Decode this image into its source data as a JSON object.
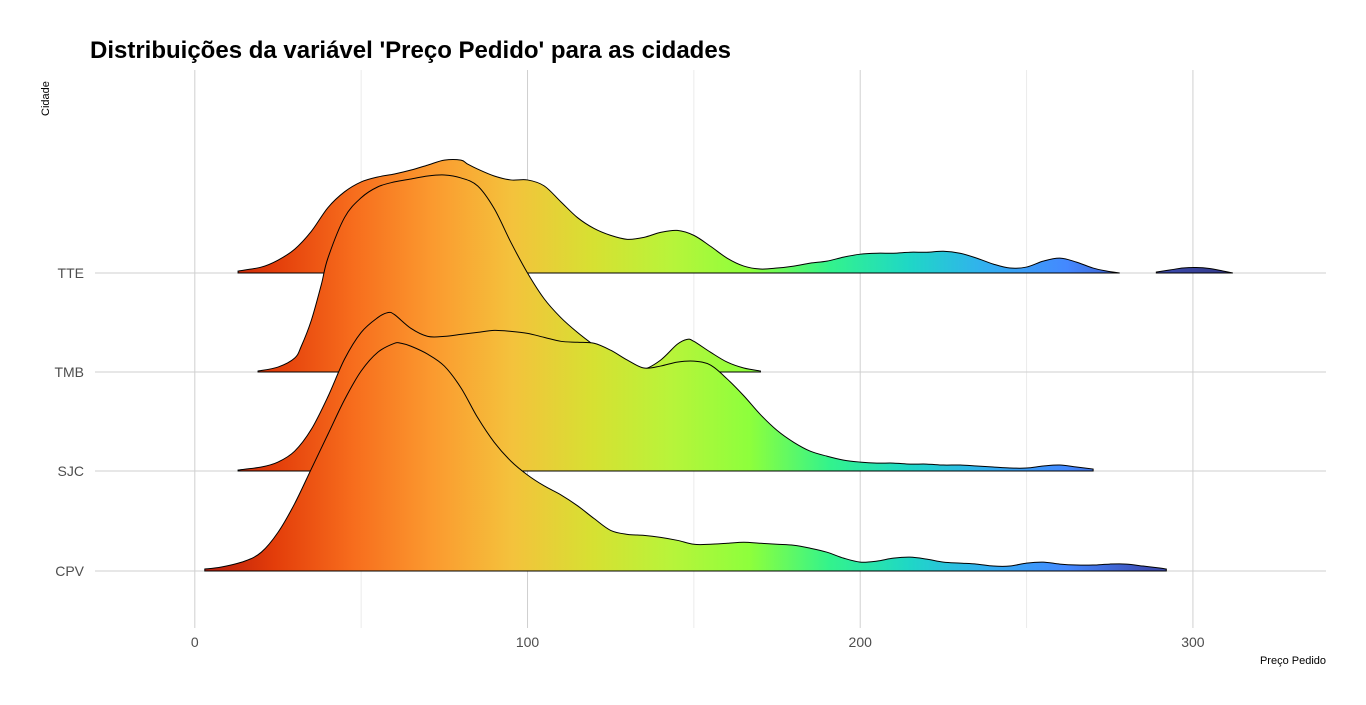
{
  "chart_data": {
    "type": "ridgeline",
    "title": "Distribuições da variável 'Preço Pedido' para as cidades",
    "xlabel": "Preço Pedido",
    "ylabel": "Cidade",
    "xlim": [
      -30,
      340
    ],
    "x_ticks": [
      0,
      100,
      200,
      300
    ],
    "x_minor_ticks": [
      50,
      150,
      250
    ],
    "fill_gradient": [
      "#b3170c",
      "#e33d0a",
      "#f76d1d",
      "#fb9a2f",
      "#f4c23c",
      "#d7e032",
      "#b8f43a",
      "#8dff3c",
      "#33f38c",
      "#1fd7c6",
      "#33aef1",
      "#4488ff",
      "#3d4eb6",
      "#343a8a"
    ],
    "grid": true,
    "legend": "none",
    "series": [
      {
        "name": "TTE",
        "segments": [
          {
            "x": [
              13,
              20,
              25,
              30,
              35,
              40,
              45,
              50,
              55,
              60,
              65,
              70,
              75,
              80,
              82,
              85,
              90,
              95,
              100,
              105,
              110,
              115,
              120,
              125,
              130,
              135,
              140,
              145,
              150,
              155,
              160,
              165,
              170,
              175,
              180,
              185,
              190,
              195,
              200,
              205,
              210,
              215,
              220,
              225,
              230,
              235,
              240,
              245,
              250,
              255,
              260,
              265,
              270,
              274,
              278
            ],
            "y": [
              0.02,
              0.06,
              0.13,
              0.24,
              0.42,
              0.66,
              0.82,
              0.92,
              0.97,
              1.0,
              1.04,
              1.09,
              1.14,
              1.14,
              1.1,
              1.05,
              0.98,
              0.94,
              0.94,
              0.88,
              0.72,
              0.56,
              0.45,
              0.38,
              0.34,
              0.36,
              0.41,
              0.43,
              0.38,
              0.27,
              0.15,
              0.07,
              0.04,
              0.05,
              0.07,
              0.1,
              0.12,
              0.16,
              0.19,
              0.2,
              0.2,
              0.21,
              0.21,
              0.22,
              0.2,
              0.15,
              0.09,
              0.05,
              0.06,
              0.12,
              0.15,
              0.11,
              0.05,
              0.02,
              0.0
            ]
          },
          {
            "x": [
              289,
              293,
              297,
              301,
              305,
              309,
              312
            ],
            "y": [
              0.01,
              0.03,
              0.05,
              0.055,
              0.045,
              0.02,
              0.0
            ]
          }
        ]
      },
      {
        "name": "TMB",
        "segments": [
          {
            "x": [
              19,
              25,
              30,
              32,
              35,
              38,
              40,
              45,
              50,
              55,
              60,
              65,
              70,
              75,
              80,
              85,
              90,
              95,
              100,
              105,
              110,
              115,
              120,
              125,
              130,
              135,
              140,
              145,
              148,
              150,
              155,
              160,
              165,
              170
            ],
            "y": [
              0.01,
              0.05,
              0.14,
              0.26,
              0.52,
              0.88,
              1.15,
              1.56,
              1.76,
              1.87,
              1.92,
              1.95,
              1.98,
              1.99,
              1.96,
              1.88,
              1.65,
              1.31,
              1.0,
              0.74,
              0.55,
              0.4,
              0.27,
              0.15,
              0.06,
              0.03,
              0.12,
              0.28,
              0.33,
              0.31,
              0.2,
              0.1,
              0.04,
              0.01
            ]
          }
        ]
      },
      {
        "name": "SJC",
        "segments": [
          {
            "x": [
              13,
              20,
              25,
              30,
              35,
              40,
              45,
              50,
              55,
              58,
              60,
              65,
              70,
              75,
              80,
              85,
              90,
              95,
              100,
              105,
              110,
              115,
              120,
              125,
              130,
              135,
              140,
              145,
              150,
              155,
              160,
              165,
              170,
              175,
              180,
              185,
              190,
              195,
              200,
              205,
              210,
              215,
              220,
              225,
              230,
              235,
              240,
              245,
              250,
              255,
              260,
              265,
              270
            ],
            "y": [
              0.01,
              0.04,
              0.09,
              0.2,
              0.42,
              0.75,
              1.13,
              1.4,
              1.55,
              1.6,
              1.58,
              1.44,
              1.36,
              1.36,
              1.38,
              1.4,
              1.42,
              1.41,
              1.39,
              1.35,
              1.31,
              1.3,
              1.29,
              1.22,
              1.12,
              1.04,
              1.06,
              1.1,
              1.11,
              1.07,
              0.93,
              0.76,
              0.57,
              0.41,
              0.29,
              0.2,
              0.15,
              0.11,
              0.09,
              0.08,
              0.08,
              0.07,
              0.07,
              0.06,
              0.06,
              0.05,
              0.04,
              0.03,
              0.03,
              0.05,
              0.06,
              0.04,
              0.02
            ]
          }
        ]
      },
      {
        "name": "CPV",
        "segments": [
          {
            "x": [
              3,
              8,
              15,
              20,
              25,
              30,
              35,
              40,
              45,
              50,
              55,
              60,
              62,
              65,
              70,
              75,
              80,
              85,
              90,
              95,
              100,
              105,
              110,
              115,
              120,
              125,
              130,
              135,
              140,
              145,
              150,
              155,
              160,
              165,
              170,
              175,
              180,
              185,
              190,
              195,
              200,
              205,
              210,
              215,
              220,
              225,
              230,
              235,
              240,
              245,
              250,
              255,
              260,
              265,
              270,
              275,
              280,
              285,
              290,
              292
            ],
            "y": [
              0.02,
              0.04,
              0.1,
              0.19,
              0.39,
              0.68,
              1.03,
              1.38,
              1.73,
              2.02,
              2.21,
              2.3,
              2.3,
              2.27,
              2.19,
              2.07,
              1.85,
              1.55,
              1.3,
              1.11,
              0.97,
              0.86,
              0.77,
              0.66,
              0.53,
              0.41,
              0.37,
              0.36,
              0.34,
              0.31,
              0.27,
              0.27,
              0.28,
              0.29,
              0.28,
              0.27,
              0.26,
              0.23,
              0.19,
              0.13,
              0.09,
              0.1,
              0.13,
              0.14,
              0.12,
              0.09,
              0.08,
              0.07,
              0.05,
              0.05,
              0.08,
              0.09,
              0.07,
              0.06,
              0.06,
              0.07,
              0.07,
              0.05,
              0.03,
              0.02
            ]
          }
        ]
      }
    ]
  }
}
